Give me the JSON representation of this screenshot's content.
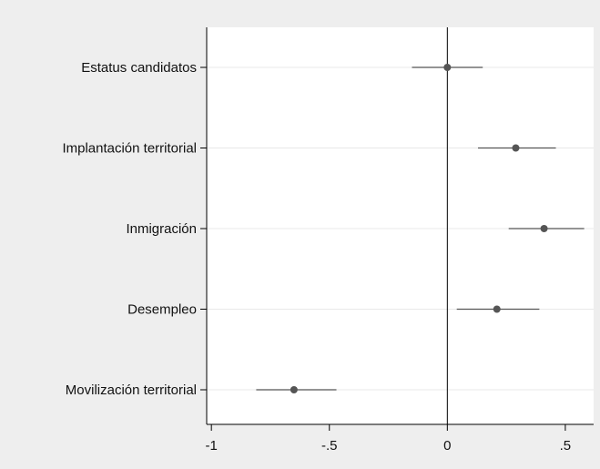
{
  "chart_data": {
    "type": "scatter",
    "subtype": "coefficient-plot",
    "title": "",
    "xlabel": "",
    "ylabel": "",
    "xlim": [
      -1.02,
      0.62
    ],
    "x_ticks": [
      -1,
      -0.5,
      0,
      0.5
    ],
    "x_tick_labels": [
      "-1",
      "-.5",
      "0",
      ".5"
    ],
    "reference_line_x": 0,
    "grid": "horizontal",
    "categories": [
      "Estatus candidatos",
      "Implantación territorial",
      "Inmigración",
      "Desempleo",
      "Movilización territorial"
    ],
    "series": [
      {
        "estimates": [
          0.0,
          0.29,
          0.41,
          0.21,
          -0.65
        ],
        "ci_low": [
          -0.15,
          0.13,
          0.26,
          0.04,
          -0.81
        ],
        "ci_high": [
          0.15,
          0.46,
          0.58,
          0.39,
          -0.47
        ]
      }
    ],
    "colors": {
      "background": "#eeeeee",
      "plot_background": "#ffffff",
      "marker": "#555555",
      "ci_line": "#555555",
      "grid": "#e8e8e8",
      "axis": "#000000",
      "reference_line": "#000000"
    }
  }
}
